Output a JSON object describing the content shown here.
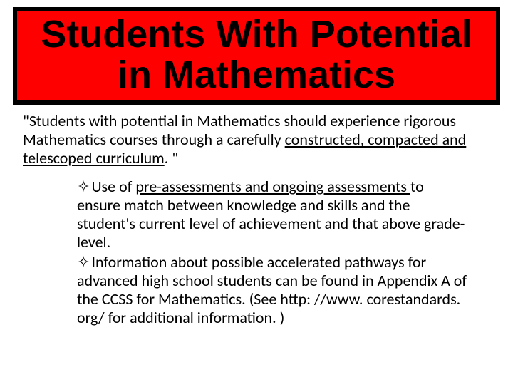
{
  "title": "Students With Potential in Mathematics",
  "quote_pre": "\"Students with potential in Mathematics should experience rigorous Mathematics courses through a carefully ",
  "quote_u1": "constructed, compacted and telescoped curriculum",
  "quote_post": ". \"",
  "bullet1_marker": "✧",
  "bullet1_pre": "Use of ",
  "bullet1_u": "pre-assessments and ongoing assessments ",
  "bullet1_post": "to ensure match between knowledge and skills and the student's current level of achievement and that above grade-level.",
  "bullet2_marker": "✧",
  "bullet2_text": "Information about possible accelerated pathways for advanced high school students can be found in Appendix A of the CCSS for Mathematics. (See http: //www. corestandards. org/ for additional information. )",
  "colors": {
    "title_bg": "#ff0000",
    "title_border": "#000000",
    "page_bg": "#ffffff",
    "text": "#000000"
  },
  "fonts": {
    "title_size": 54,
    "body_size": 22,
    "title_weight": "bold"
  }
}
